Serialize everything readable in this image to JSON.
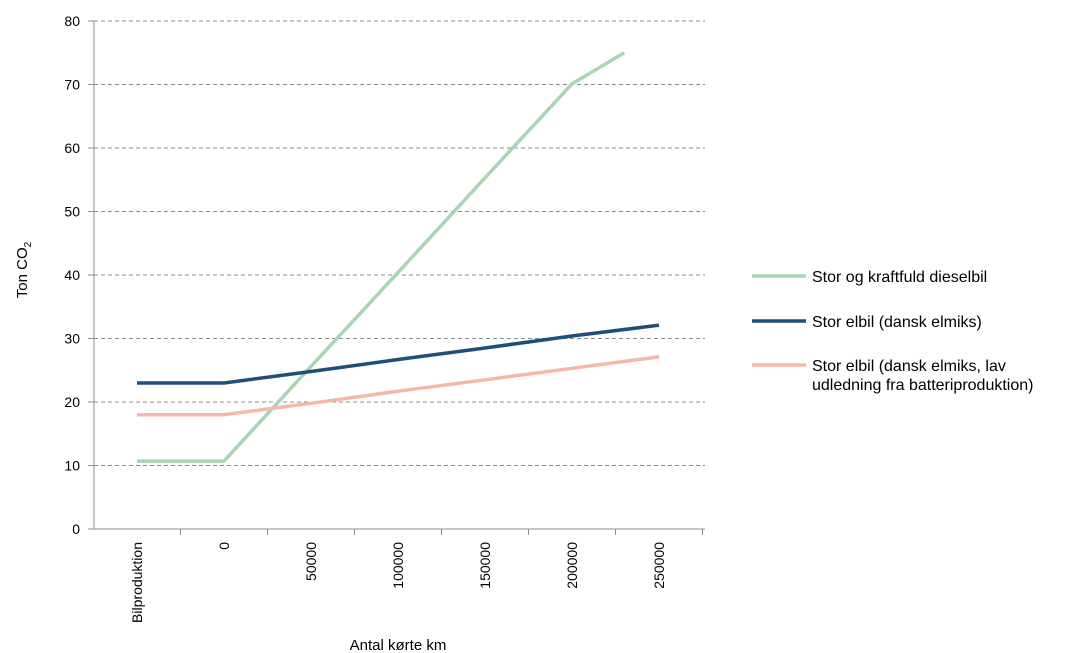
{
  "chart_data": {
    "type": "line",
    "title": "",
    "xlabel": "Antal kørte km",
    "ylabel": "Ton CO",
    "ylabel_subscript": "2",
    "categories": [
      "Bilproduktion",
      "0",
      "50000",
      "100000",
      "150000",
      "200000",
      "250000"
    ],
    "ylim": [
      0,
      80
    ],
    "yticks": [
      0,
      10,
      20,
      30,
      40,
      50,
      60,
      70,
      80
    ],
    "grid": true,
    "legend_position": "right",
    "series": [
      {
        "name": "Stor og kraftfuld dieselbil",
        "color": "#a8d5b4",
        "values": [
          10.7,
          10.7,
          25.6,
          40.4,
          55.3,
          70.1,
          75
        ]
      },
      {
        "name": "Stor elbil (dansk elmiks)",
        "color": "#1f4e79",
        "values": [
          23,
          23,
          24.8,
          26.7,
          28.5,
          30.4,
          32.1
        ]
      },
      {
        "name": "Stor elbil (dansk elmiks, lav udledning fra batteriproduktion)",
        "name_lines": [
          "Stor elbil (dansk elmiks, lav",
          "udledning fra batteriproduktion)"
        ],
        "color": "#f5b8a8",
        "values": [
          18,
          18,
          19.8,
          21.7,
          23.5,
          25.3,
          27.1
        ]
      }
    ],
    "line_x": [
      [
        0,
        1,
        2,
        3,
        4,
        5,
        5.6
      ],
      [
        0,
        1,
        2,
        3,
        4,
        5,
        6
      ],
      [
        0,
        1,
        2,
        3,
        4,
        5,
        6
      ]
    ]
  }
}
